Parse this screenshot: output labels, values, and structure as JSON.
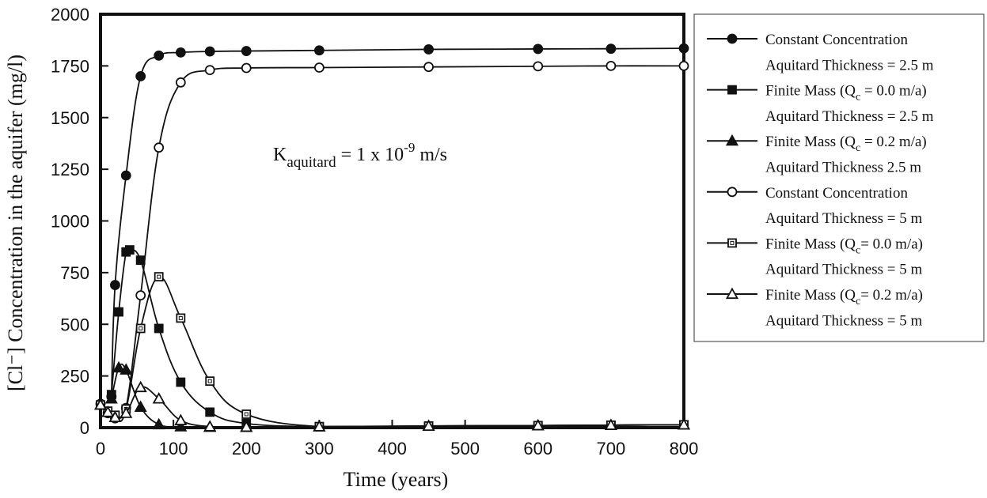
{
  "chart_data": {
    "type": "line",
    "xlabel": "Time (years)",
    "ylabel": "[Cl⁻] Concentration in the aquifer (mg/l)",
    "xlim": [
      0,
      800
    ],
    "ylim": [
      0,
      2000
    ],
    "x_ticks": [
      "0",
      "100",
      "200",
      "300",
      "400",
      "500",
      "600",
      "700",
      "800"
    ],
    "y_ticks": [
      "0",
      "250",
      "500",
      "750",
      "1000",
      "1250",
      "1500",
      "1750",
      "2000"
    ],
    "grid": false,
    "legend_position": "right",
    "annotation": {
      "text": "K",
      "sub": "aquitard",
      "mid": " = 1 x 10",
      "sup": "-9",
      "tail": " m/s"
    },
    "series": [
      {
        "marker": "circle-filled",
        "legend": [
          {
            "text": "Constant Concentration"
          },
          {
            "text": "Aquitard Thickness = 2.5 m"
          }
        ],
        "points": [
          [
            15,
            150
          ],
          [
            20,
            690
          ],
          [
            35,
            1220
          ],
          [
            55,
            1700
          ],
          [
            80,
            1800
          ],
          [
            110,
            1815
          ],
          [
            150,
            1820
          ],
          [
            200,
            1822
          ],
          [
            300,
            1825
          ],
          [
            450,
            1830
          ],
          [
            600,
            1832
          ],
          [
            700,
            1833
          ],
          [
            800,
            1835
          ]
        ]
      },
      {
        "marker": "square-filled",
        "legend": [
          {
            "text": "Finite Mass (Q",
            "sub": "c",
            "tail": " = 0.0 m/a)"
          },
          {
            "text": "Aquitard Thickness = 2.5 m"
          }
        ],
        "points": [
          [
            15,
            160
          ],
          [
            25,
            560
          ],
          [
            35,
            850
          ],
          [
            40,
            860
          ],
          [
            55,
            810
          ],
          [
            80,
            480
          ],
          [
            110,
            220
          ],
          [
            150,
            75
          ],
          [
            200,
            20
          ],
          [
            300,
            5
          ],
          [
            450,
            8
          ],
          [
            600,
            10
          ],
          [
            700,
            12
          ],
          [
            800,
            14
          ]
        ]
      },
      {
        "marker": "triangle-filled",
        "legend": [
          {
            "text": "Finite Mass (Q",
            "sub": "c",
            "tail": " = 0.2 m/a)"
          },
          {
            "text": "Aquitard Thickness 2.5 m"
          }
        ],
        "points": [
          [
            15,
            140
          ],
          [
            25,
            290
          ],
          [
            35,
            280
          ],
          [
            55,
            100
          ],
          [
            80,
            15
          ],
          [
            110,
            5
          ],
          [
            150,
            3
          ],
          [
            200,
            3
          ],
          [
            300,
            5
          ],
          [
            450,
            8
          ],
          [
            600,
            10
          ],
          [
            700,
            12
          ],
          [
            800,
            14
          ]
        ]
      },
      {
        "marker": "circle-open",
        "legend": [
          {
            "text": "Constant Concentration"
          },
          {
            "text": "Aquitard Thickness = 5 m"
          }
        ],
        "points": [
          [
            0,
            115
          ],
          [
            10,
            70
          ],
          [
            20,
            45
          ],
          [
            35,
            95
          ],
          [
            55,
            640
          ],
          [
            80,
            1355
          ],
          [
            110,
            1670
          ],
          [
            150,
            1730
          ],
          [
            200,
            1740
          ],
          [
            300,
            1742
          ],
          [
            450,
            1745
          ],
          [
            600,
            1748
          ],
          [
            700,
            1750
          ],
          [
            800,
            1750
          ]
        ]
      },
      {
        "marker": "square-open",
        "legend": [
          {
            "text": "Finite Mass (Q",
            "sub": "c",
            "tail": "= 0.0 m/a)"
          },
          {
            "text": "Aquitard Thickness = 5 m"
          }
        ],
        "points": [
          [
            0,
            110
          ],
          [
            10,
            80
          ],
          [
            20,
            60
          ],
          [
            35,
            90
          ],
          [
            55,
            480
          ],
          [
            80,
            730
          ],
          [
            110,
            530
          ],
          [
            150,
            225
          ],
          [
            200,
            65
          ],
          [
            300,
            5
          ],
          [
            450,
            8
          ],
          [
            600,
            10
          ],
          [
            700,
            12
          ],
          [
            800,
            14
          ]
        ]
      },
      {
        "marker": "triangle-open",
        "legend": [
          {
            "text": "Finite Mass (Q",
            "sub": "c",
            "tail": "= 0.2 m/a)"
          },
          {
            "text": "Aquitard Thickness = 5 m"
          }
        ],
        "points": [
          [
            0,
            110
          ],
          [
            10,
            75
          ],
          [
            20,
            50
          ],
          [
            35,
            70
          ],
          [
            55,
            195
          ],
          [
            80,
            140
          ],
          [
            110,
            35
          ],
          [
            150,
            5
          ],
          [
            200,
            3
          ],
          [
            300,
            5
          ],
          [
            450,
            8
          ],
          [
            600,
            10
          ],
          [
            700,
            12
          ],
          [
            800,
            14
          ]
        ]
      }
    ]
  }
}
